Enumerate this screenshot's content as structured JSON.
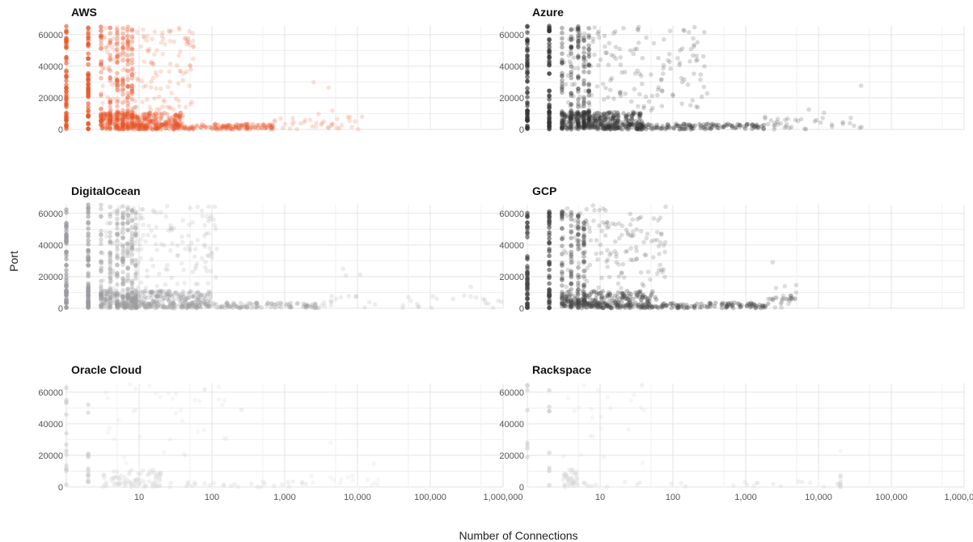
{
  "figure": {
    "xlabel": "Number of Connections",
    "ylabel": "Port"
  },
  "chart_data": {
    "type": "scatter",
    "x_scale": "log",
    "xlim": [
      1,
      1000000
    ],
    "ylim": [
      0,
      65535
    ],
    "x_ticks": [
      "10",
      "100",
      "1,000",
      "10,000",
      "100,000",
      "1,000,000"
    ],
    "x_tick_values": [
      10,
      100,
      1000,
      10000,
      100000,
      1000000
    ],
    "y_ticks": [
      "0",
      "20000",
      "40000",
      "60000"
    ],
    "y_tick_values": [
      0,
      20000,
      40000,
      60000
    ],
    "grid": true,
    "panels": [
      {
        "title": "AWS",
        "color": "#e8562a",
        "density": 1.0,
        "dense_x_max": 40,
        "tail_x_max": 700,
        "sparse_x_max": 12000,
        "high_port_x_max": 60,
        "stripe_counts": [
          1,
          2,
          3,
          4,
          5,
          6,
          7,
          8
        ],
        "max_stripe_port": 65535
      },
      {
        "title": "Azure",
        "color": "#333333",
        "density": 1.0,
        "dense_x_max": 40,
        "tail_x_max": 1800,
        "sparse_x_max": 40000,
        "high_port_x_max": 300,
        "stripe_counts": [
          1,
          2,
          3,
          4,
          5,
          6,
          7
        ],
        "max_stripe_port": 65535
      },
      {
        "title": "DigitalOcean",
        "color": "#9a9a9e",
        "density": 1.0,
        "dense_x_max": 100,
        "tail_x_max": 3000,
        "sparse_x_max": 1000000,
        "high_port_x_max": 120,
        "stripe_counts": [
          1,
          2,
          3,
          4,
          5,
          6,
          7,
          8,
          9
        ],
        "max_stripe_port": 65535
      },
      {
        "title": "GCP",
        "color": "#444444",
        "density": 0.9,
        "dense_x_max": 60,
        "tail_x_max": 2000,
        "sparse_x_max": 5000,
        "high_port_x_max": 80,
        "stripe_counts": [
          1,
          2,
          3,
          4,
          5,
          6
        ],
        "max_stripe_port": 62000
      },
      {
        "title": "Oracle Cloud",
        "color": "#cfcfcf",
        "density": 0.25,
        "dense_x_max": 20,
        "tail_x_max": 2000,
        "sparse_x_max": 20000,
        "high_port_x_max": 500,
        "stripe_counts": [
          1,
          2
        ],
        "max_stripe_port": 65535
      },
      {
        "title": "Rackspace",
        "color": "#cfcfcf",
        "density": 0.15,
        "dense_x_max": 5,
        "tail_x_max": 20000,
        "sparse_x_max": 20000,
        "high_port_x_max": 40,
        "stripe_counts": [
          1,
          2
        ],
        "max_stripe_port": 65535
      }
    ]
  }
}
